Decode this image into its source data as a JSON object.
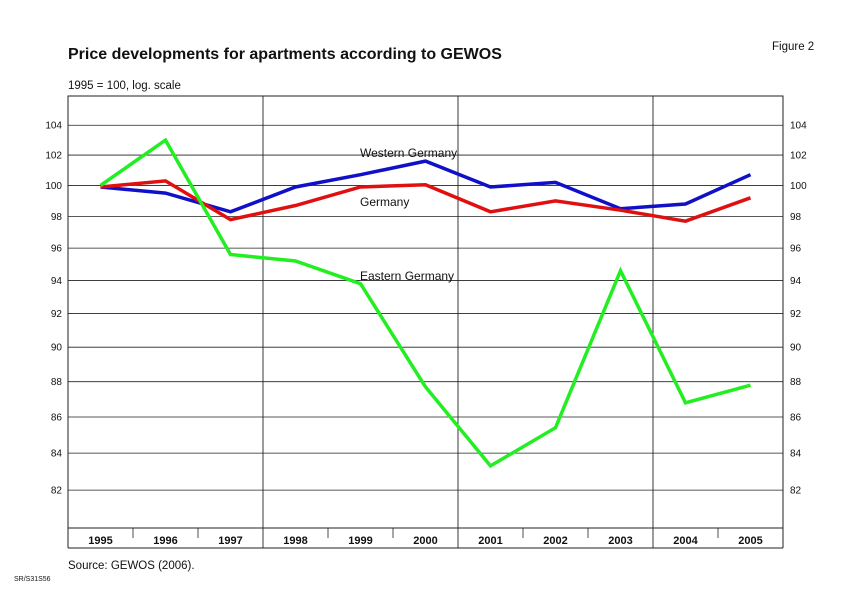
{
  "header": {
    "title": "Price developments for apartments according to GEWOS",
    "figure_label": "Figure 2",
    "subtitle": "1995 = 100, log. scale"
  },
  "footer": {
    "source": "Source: GEWOS (2006).",
    "code": "SR/S31S56"
  },
  "chart_data": {
    "type": "line",
    "title": "Price developments for apartments according to GEWOS",
    "subtitle": "1995 = 100, log. scale",
    "y_scale": "log",
    "ylim": [
      80,
      106
    ],
    "y_ticks": [
      82,
      84,
      86,
      88,
      90,
      92,
      94,
      96,
      98,
      100,
      102,
      104
    ],
    "x": [
      "1995",
      "1996",
      "1997",
      "1998",
      "1999",
      "2000",
      "2001",
      "2002",
      "2003",
      "2004",
      "2005"
    ],
    "grid": true,
    "series": [
      {
        "name": "Western Germany",
        "color": "#1010c8",
        "values": [
          99.9,
          99.5,
          98.3,
          99.9,
          100.7,
          101.6,
          99.9,
          100.2,
          98.5,
          98.8,
          100.7
        ]
      },
      {
        "name": "Germany",
        "color": "#e01010",
        "values": [
          99.9,
          100.3,
          97.8,
          98.7,
          99.9,
          100.05,
          98.3,
          99.0,
          98.4,
          97.7,
          99.2
        ]
      },
      {
        "name": "Eastern Germany",
        "color": "#22ee22",
        "values": [
          100.0,
          103.0,
          95.6,
          95.2,
          93.8,
          87.7,
          83.3,
          85.4,
          94.6,
          86.8,
          87.8
        ]
      }
    ]
  }
}
